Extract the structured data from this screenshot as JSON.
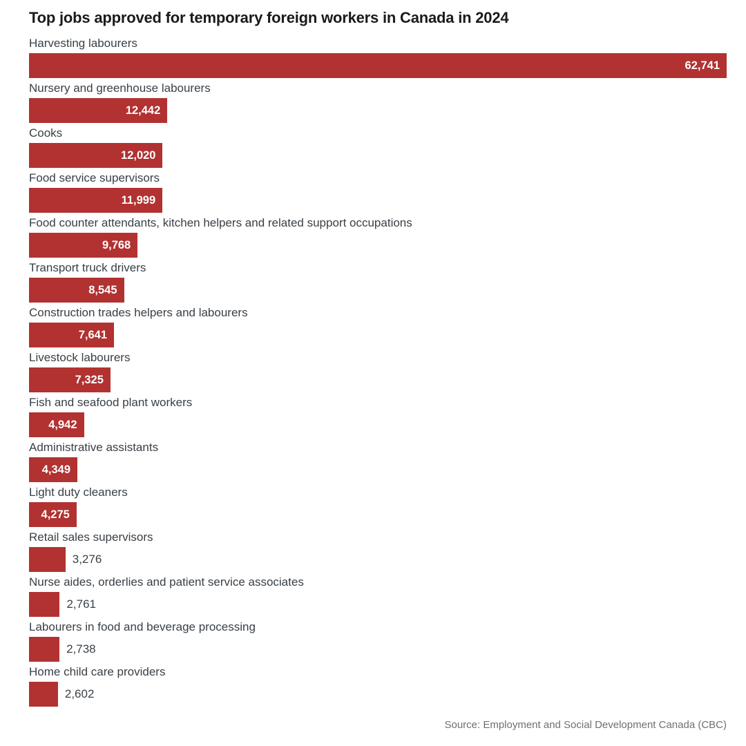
{
  "chart_data": {
    "type": "bar",
    "orientation": "horizontal",
    "title": "Top jobs approved for temporary foreign workers in Canada in 2024",
    "source": "Source: Employment and Social Development Canada (CBC)",
    "xlim": [
      0,
      62741
    ],
    "grid": false,
    "legend": false,
    "bar_color": "#b13231",
    "categories": [
      "Harvesting labourers",
      "Nursery and greenhouse labourers",
      "Cooks",
      "Food service supervisors",
      "Food counter attendants, kitchen helpers and related support occupations",
      "Transport truck drivers",
      "Construction trades helpers and labourers",
      "Livestock labourers",
      "Fish and seafood plant workers",
      "Administrative assistants",
      "Light duty cleaners",
      "Retail sales supervisors",
      "Nurse aides, orderlies and patient service associates",
      "Labourers in food and beverage processing",
      "Home child care providers"
    ],
    "values": [
      62741,
      12442,
      12020,
      11999,
      9768,
      8545,
      7641,
      7325,
      4942,
      4349,
      4275,
      3276,
      2761,
      2738,
      2602
    ],
    "value_labels": [
      "62,741",
      "12,442",
      "12,020",
      "11,999",
      "9,768",
      "8,545",
      "7,641",
      "7,325",
      "4,942",
      "4,349",
      "4,275",
      "3,276",
      "2,761",
      "2,738",
      "2,602"
    ],
    "value_label_positions": [
      "inside",
      "inside",
      "inside",
      "inside",
      "inside",
      "inside",
      "inside",
      "inside",
      "inside",
      "inside",
      "inside",
      "outside",
      "outside",
      "outside",
      "outside"
    ]
  }
}
